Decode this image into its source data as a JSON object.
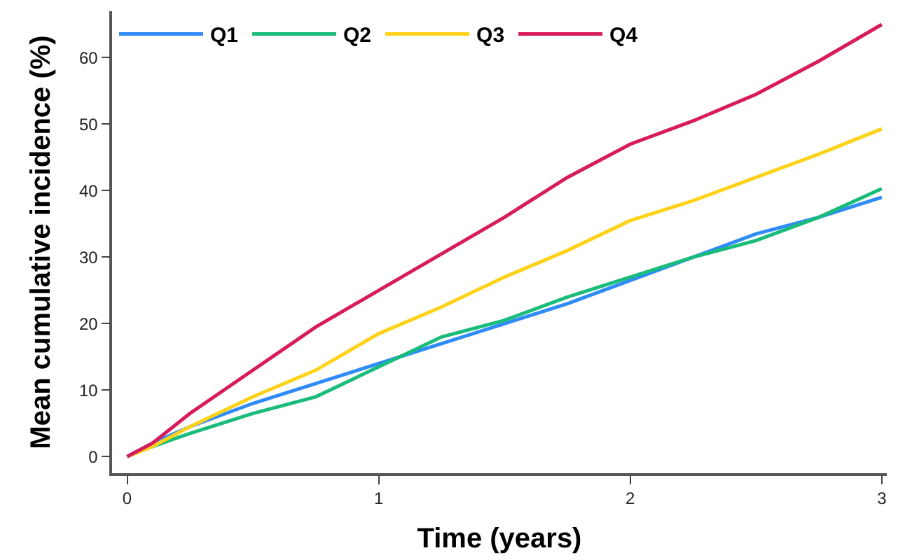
{
  "chart_data": {
    "type": "line",
    "xlabel": "Time (years)",
    "ylabel": "Mean cumulative incidence (%)",
    "x": [
      0,
      0.1,
      0.25,
      0.5,
      0.75,
      1,
      1.25,
      1.5,
      1.75,
      2,
      2.25,
      2.5,
      2.75,
      3
    ],
    "series": [
      {
        "name": "Q1",
        "color": "#2f8cf7",
        "values": [
          0,
          2,
          4.5,
          8,
          11,
          14,
          17,
          20,
          23,
          26.5,
          30,
          33.5,
          36,
          39
        ]
      },
      {
        "name": "Q2",
        "color": "#1abc7c",
        "values": [
          0,
          1.5,
          3.5,
          6.5,
          9,
          13.5,
          18,
          20.5,
          24,
          27,
          30,
          32.5,
          36,
          40.3
        ]
      },
      {
        "name": "Q3",
        "color": "#ffd21a",
        "values": [
          0,
          1.5,
          4.5,
          9,
          13,
          18.5,
          22.5,
          27,
          31,
          35.5,
          38.5,
          42,
          45.5,
          49.3
        ]
      },
      {
        "name": "Q4",
        "color": "#d81b5a",
        "values": [
          0,
          2,
          6.5,
          13,
          19.5,
          25,
          30.5,
          36,
          42,
          47,
          50.5,
          54.5,
          59.5,
          65
        ]
      }
    ],
    "xlim": [
      -0.06,
      3.02
    ],
    "ylim": [
      -2.5,
      67
    ],
    "xticks": [
      0,
      1,
      2,
      3
    ],
    "yticks": [
      0,
      10,
      20,
      30,
      40,
      50,
      60
    ],
    "legend": "top left",
    "marker": "none",
    "line_style": "solid"
  }
}
